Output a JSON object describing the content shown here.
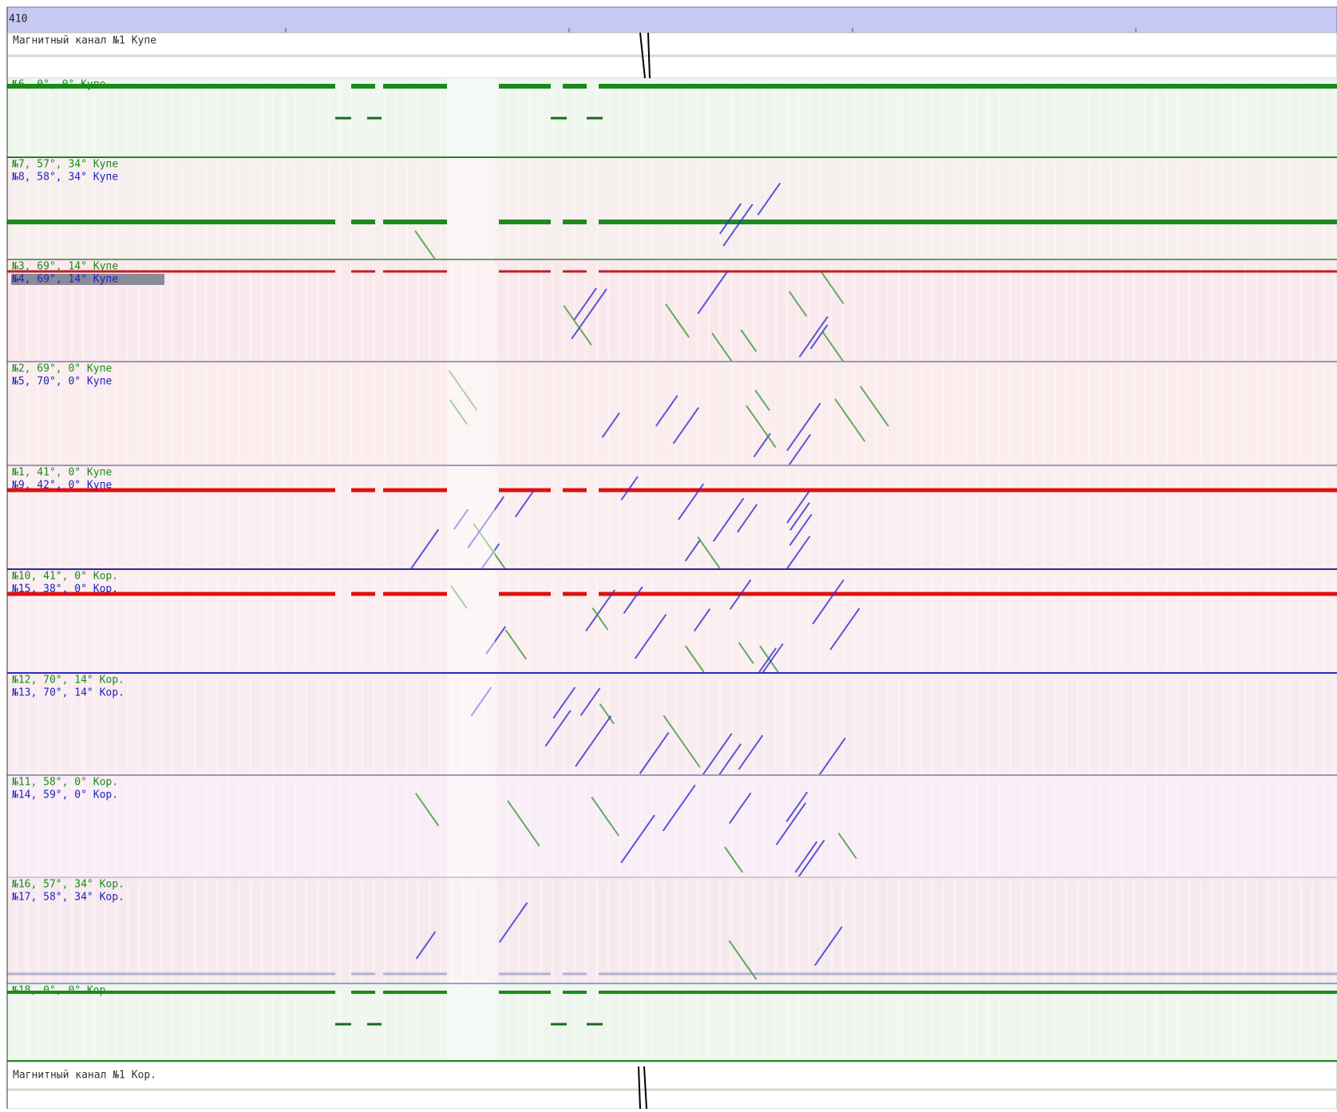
{
  "header": {
    "title": "410"
  },
  "magnetic_top": {
    "label": "Магнитный канал №1 Купе"
  },
  "panels": [
    {
      "labels": [
        "№6, 0°, 0° Купе"
      ]
    },
    {
      "labels": [
        "№7, 57°, 34° Купе",
        "№8, 58°, 34° Купе"
      ]
    },
    {
      "labels": [
        "№3, 69°, 14° Купе",
        "№4, 69°, 14° Купе"
      ]
    },
    {
      "labels": [
        "№2, 69°, 0° Купе",
        "№5, 70°, 0° Купе"
      ]
    },
    {
      "labels": [
        "№1, 41°, 0° Купе",
        "№9, 42°, 0° Купе"
      ]
    },
    {
      "labels": [
        "№10, 41°, 0° Кор.",
        "№15, 38°, 0° Кор."
      ]
    },
    {
      "labels": [
        "№12, 70°, 14° Кор.",
        "№13, 70°, 14° Кор."
      ]
    },
    {
      "labels": [
        "№11, 58°, 0° Кор.",
        "№14, 59°, 0° Кор."
      ]
    },
    {
      "labels": [
        "№16, 57°, 34° Кор.",
        "№17, 58°, 34° Кор."
      ]
    },
    {
      "labels": [
        "№18, 0°, 0° Кор."
      ]
    }
  ],
  "magnetic_bottom": {
    "label": "Магнитный канал №1 Кор."
  }
}
